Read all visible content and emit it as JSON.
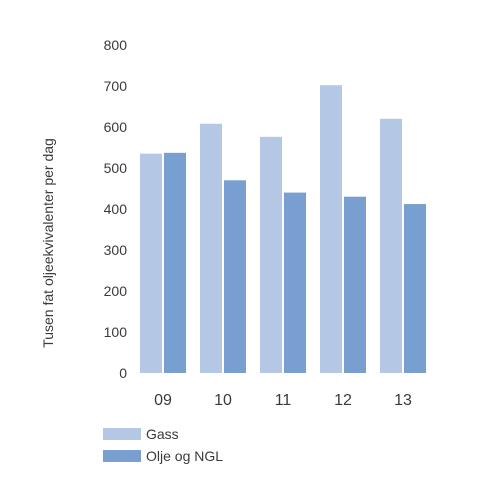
{
  "chart_data": {
    "type": "bar",
    "categories": [
      "09",
      "10",
      "11",
      "12",
      "13"
    ],
    "series": [
      {
        "name": "Gass",
        "values": [
          535,
          608,
          576,
          702,
          620
        ],
        "color": "#b4c8e6"
      },
      {
        "name": "Olje og NGL",
        "values": [
          537,
          470,
          440,
          430,
          412
        ],
        "color": "#789fcf"
      }
    ],
    "title": "",
    "xlabel": "",
    "ylabel": "Tusen fat oljeekvivalenter per dag",
    "ylim": [
      0,
      800
    ],
    "yticks": [
      0,
      100,
      200,
      300,
      400,
      500,
      600,
      700,
      800
    ],
    "grid": false,
    "legend": "bottom-left"
  }
}
